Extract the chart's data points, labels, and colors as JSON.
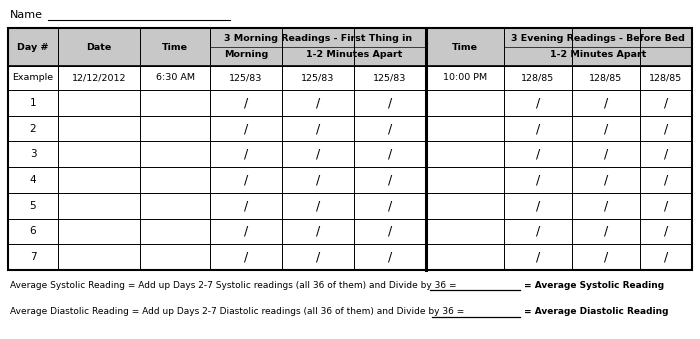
{
  "name_label": "Name",
  "example_row": [
    "Example",
    "12/12/2012",
    "6:30 AM",
    "125/83",
    "125/83",
    "125/83",
    "10:00 PM",
    "128/85",
    "128/85",
    "128/85"
  ],
  "day_rows": [
    "1",
    "2",
    "3",
    "4",
    "5",
    "6",
    "7"
  ],
  "slash_cols": [
    3,
    4,
    5,
    7,
    8,
    9
  ],
  "avg_systolic_text": "Average Systolic Reading = Add up Days 2-7 Systolic readings (all 36 of them) and Divide by 36 =",
  "avg_systolic_bold": "= Average Systolic Reading",
  "avg_diastolic_text": "Average Diastolic Reading = Add up Days 2-7 Diastolic readings (all 36 of them) and Divide by 36 =",
  "avg_diastolic_bold": "= Average Diastolic Reading",
  "bg_color": "#ffffff",
  "header_bg": "#c8c8c8",
  "border_color": "#000000"
}
